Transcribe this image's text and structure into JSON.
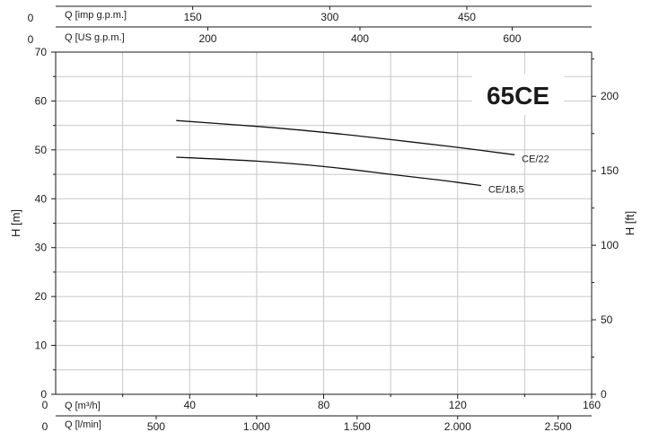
{
  "chart_data": {
    "type": "line",
    "badge": "65CE",
    "grid": true,
    "axes": {
      "bottom_m3h": {
        "label": "Q [m³/h]",
        "zero_label": "0",
        "range": [
          0,
          160
        ],
        "ticks": [
          40,
          80,
          120,
          160
        ]
      },
      "bottom_lmin": {
        "label": "Q [l/min]",
        "zero_label": "0",
        "range": [
          0,
          2666.67
        ],
        "ticks": [
          500,
          1000,
          1500,
          2000,
          2500
        ],
        "tick_labels": [
          "500",
          "1.000",
          "1.500",
          "2.000",
          "2.500"
        ]
      },
      "top_us": {
        "label": "Q [US g.p.m.]",
        "zero_label": "0",
        "range": [
          0,
          704.5
        ],
        "ticks": [
          200,
          400,
          600
        ]
      },
      "top_imp": {
        "label": "Q [imp g.p.m.]",
        "zero_label": "0",
        "range": [
          0,
          586.6
        ],
        "ticks": [
          150,
          300,
          450
        ]
      },
      "left_m": {
        "label": "H [m]",
        "range": [
          0,
          70
        ],
        "ticks": [
          0,
          10,
          20,
          30,
          40,
          50,
          60,
          70
        ]
      },
      "right_ft": {
        "label": "H [ft]",
        "range": [
          0,
          229.66
        ],
        "ticks": [
          0,
          50,
          100,
          150,
          200
        ]
      }
    },
    "series": [
      {
        "name": "CE/22",
        "x": [
          36,
          60,
          80,
          100,
          120,
          137
        ],
        "y": [
          56.0,
          54.8,
          53.6,
          52.1,
          50.5,
          49.0
        ]
      },
      {
        "name": "CE/18,5",
        "x": [
          36,
          60,
          80,
          100,
          115,
          127
        ],
        "y": [
          48.5,
          47.7,
          46.6,
          45.0,
          43.8,
          42.7
        ]
      }
    ]
  }
}
